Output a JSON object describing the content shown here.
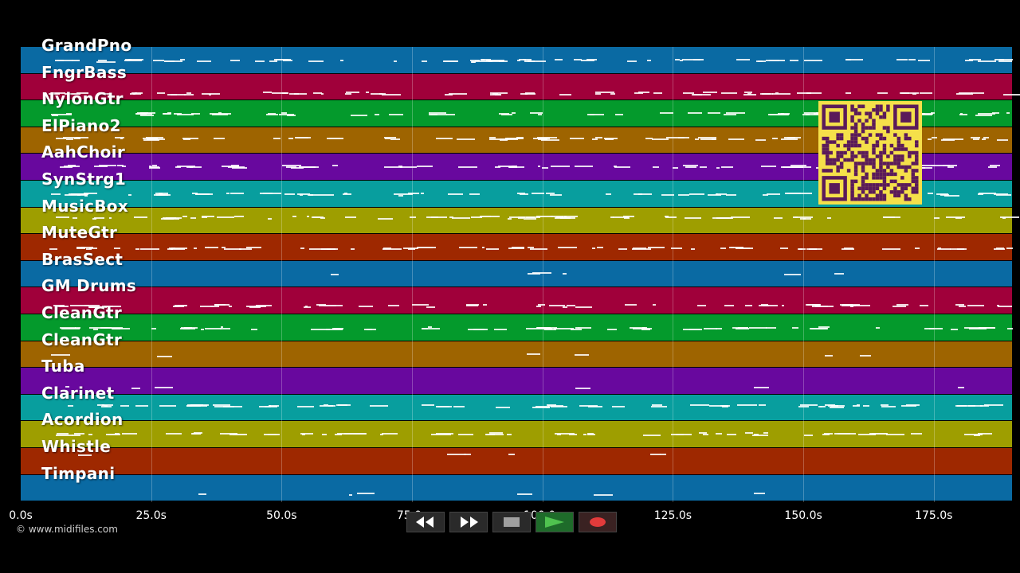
{
  "tracks": [
    {
      "label": "GrandPno",
      "color": "#0a6aa3",
      "note_y": 0.48
    },
    {
      "label": "FngrBass",
      "color": "#a0003a",
      "note_y": 0.72
    },
    {
      "label": "NylonGtr",
      "color": "#049a2c",
      "note_y": 0.48
    },
    {
      "label": "ElPiano2",
      "color": "#9e6400",
      "note_y": 0.4
    },
    {
      "label": "AahChoir",
      "color": "#68089e",
      "note_y": 0.45
    },
    {
      "label": "SynStrg1",
      "color": "#089e9e",
      "note_y": 0.48
    },
    {
      "label": "MusicBox",
      "color": "#9e9e00",
      "note_y": 0.35
    },
    {
      "label": "MuteGtr",
      "color": "#9e2800",
      "note_y": 0.5
    },
    {
      "label": "BrasSect",
      "color": "#0a6aa3",
      "note_y": 0.45
    },
    {
      "label": "GM Drums",
      "color": "#a0003a",
      "note_y": 0.65
    },
    {
      "label": "CleanGtr",
      "color": "#049a2c",
      "note_y": 0.5
    },
    {
      "label": "CleanGtr",
      "color": "#9e6400",
      "note_y": 0.5
    },
    {
      "label": "Tuba",
      "color": "#68089e",
      "note_y": 0.72
    },
    {
      "label": "Clarinet",
      "color": "#089e9e",
      "note_y": 0.4
    },
    {
      "label": "Acordion",
      "color": "#9e9e00",
      "note_y": 0.45
    },
    {
      "label": "Whistle",
      "color": "#9e2800",
      "note_y": 0.2
    },
    {
      "label": "Timpani",
      "color": "#0a6aa3",
      "note_y": 0.7
    }
  ],
  "timeline": {
    "max_seconds": 190,
    "ticks": [
      {
        "t": 0,
        "label": "0.0s"
      },
      {
        "t": 25,
        "label": "25.0s"
      },
      {
        "t": 50,
        "label": "50.0s"
      },
      {
        "t": 75,
        "label": "75.0s"
      },
      {
        "t": 100,
        "label": "100.0s"
      },
      {
        "t": 125,
        "label": "125.0s"
      },
      {
        "t": 150,
        "label": "150.0s"
      },
      {
        "t": 175,
        "label": "175.0s"
      }
    ]
  },
  "copyright": "© www.midifiles.com",
  "transport": {
    "rewind": "rewind-icon",
    "fast_forward": "fast-forward-icon",
    "stop": "stop-icon",
    "play": "play-icon",
    "record": "record-icon",
    "colors": {
      "play": "#4fc34f",
      "record": "#e23b3b",
      "stop": "#a0a0a0"
    }
  },
  "qr_code": "qr-code-image"
}
